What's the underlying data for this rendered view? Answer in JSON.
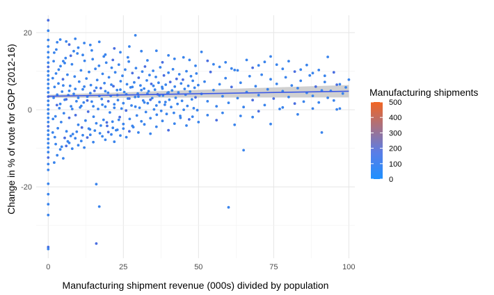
{
  "chart_data": {
    "type": "scatter",
    "title": "",
    "xlabel": "Manufacturing shipment revenue (000s) divided by population",
    "ylabel": "Change in % of vote for GOP (2012-16)",
    "xlim": [
      -4,
      102
    ],
    "ylim": [
      -38.5,
      24.5
    ],
    "x_ticks": [
      0,
      25,
      50,
      75,
      100
    ],
    "x_tick_labels": [
      "0",
      "25",
      "50",
      "75",
      "100"
    ],
    "y_ticks": [
      -20,
      0,
      20
    ],
    "y_tick_labels": [
      "-20",
      "0",
      "20"
    ],
    "grid": true,
    "point_color": "#3a84ec",
    "point_color_dark": "#4a6ee0",
    "trend_line": {
      "color": "#3b59e6",
      "band_color": "#c8c8c8",
      "x": [
        0,
        100
      ],
      "y": [
        3.5,
        4.8
      ],
      "band_halfwidth_start": 0.4,
      "band_halfwidth_end": 1.6
    },
    "legend": {
      "title": "Manufacturing shipments",
      "position": "right",
      "range": [
        0,
        500
      ],
      "labels": [
        "500",
        "400",
        "300",
        "200",
        "100",
        "0"
      ],
      "color_low": "#1e90ff",
      "color_mid": "#5b7de6",
      "color_high": "#f26522"
    },
    "points": [
      [
        0,
        23.2
      ],
      [
        0,
        20.5
      ],
      [
        0,
        18.1
      ],
      [
        0,
        16.4
      ],
      [
        0,
        14.9
      ],
      [
        0,
        13.6
      ],
      [
        0,
        12.2
      ],
      [
        0,
        11.1
      ],
      [
        0,
        10.0
      ],
      [
        0,
        8.9
      ],
      [
        0,
        7.8
      ],
      [
        0,
        6.7
      ],
      [
        0,
        5.6
      ],
      [
        0,
        4.5
      ],
      [
        0,
        3.4
      ],
      [
        0,
        2.3
      ],
      [
        0,
        1.2
      ],
      [
        0,
        0.1
      ],
      [
        0,
        -1.0
      ],
      [
        0,
        -2.1
      ],
      [
        0,
        -3.2
      ],
      [
        0,
        -4.3
      ],
      [
        0,
        -5.4
      ],
      [
        0,
        -6.5
      ],
      [
        0,
        -7.6
      ],
      [
        0,
        -8.7
      ],
      [
        0,
        -9.8
      ],
      [
        0,
        -11.0
      ],
      [
        0,
        -12.4
      ],
      [
        0,
        -14.1
      ],
      [
        0,
        -15.6
      ],
      [
        0,
        -19.2
      ],
      [
        0,
        -21.9
      ],
      [
        0,
        -24.5
      ],
      [
        0,
        -27.3
      ],
      [
        0,
        -35.6
      ],
      [
        0,
        -36.1
      ],
      [
        2,
        14.8
      ],
      [
        3,
        17.5
      ],
      [
        4,
        18.2
      ],
      [
        5,
        12.6
      ],
      [
        6,
        17.7
      ],
      [
        7,
        16.9
      ],
      [
        9,
        18.4
      ],
      [
        10,
        16.1
      ],
      [
        12,
        17.3
      ],
      [
        14,
        16.8
      ],
      [
        17,
        17.6
      ],
      [
        19,
        14.3
      ],
      [
        22,
        15.9
      ],
      [
        24,
        14.9
      ],
      [
        27,
        16.4
      ],
      [
        29,
        19.3
      ],
      [
        31,
        15.2
      ],
      [
        33,
        12.8
      ],
      [
        36,
        15.3
      ],
      [
        38,
        12.3
      ],
      [
        40,
        14.1
      ],
      [
        42,
        13.2
      ],
      [
        45,
        13.6
      ],
      [
        47,
        12.9
      ],
      [
        49,
        11.4
      ],
      [
        51,
        15.0
      ],
      [
        53,
        12.7
      ],
      [
        55,
        11.8
      ],
      [
        57,
        11.1
      ],
      [
        59,
        12.3
      ],
      [
        61,
        10.7
      ],
      [
        63,
        10.2
      ],
      [
        66,
        12.9
      ],
      [
        68,
        10.9
      ],
      [
        70,
        11.5
      ],
      [
        72,
        12.4
      ],
      [
        74,
        13.8
      ],
      [
        76,
        11.7
      ],
      [
        78,
        10.6
      ],
      [
        80,
        12.6
      ],
      [
        82,
        9.9
      ],
      [
        84,
        10.4
      ],
      [
        86,
        11.6
      ],
      [
        88,
        9.5
      ],
      [
        90,
        10.3
      ],
      [
        92,
        8.8
      ],
      [
        93,
        13.7
      ],
      [
        95,
        9.7
      ],
      [
        97,
        6.6
      ],
      [
        100,
        7.8
      ],
      [
        2,
        -13.7
      ],
      [
        3,
        -11.8
      ],
      [
        4,
        -10.3
      ],
      [
        5,
        -12.6
      ],
      [
        6,
        -9.4
      ],
      [
        7,
        -8.6
      ],
      [
        8,
        -10.1
      ],
      [
        9,
        -7.4
      ],
      [
        10,
        -9.2
      ],
      [
        11,
        -8.1
      ],
      [
        12,
        -9.8
      ],
      [
        13,
        -7.2
      ],
      [
        14,
        -6.5
      ],
      [
        15,
        -8.4
      ],
      [
        16,
        -19.3
      ],
      [
        17,
        -25.1
      ],
      [
        18,
        -6.9
      ],
      [
        19,
        -7.8
      ],
      [
        20,
        -5.8
      ],
      [
        21,
        -6.4
      ],
      [
        22,
        -8.3
      ],
      [
        23,
        -5.2
      ],
      [
        24,
        -6.7
      ],
      [
        25,
        -4.9
      ],
      [
        26,
        -7.1
      ],
      [
        27,
        -5.6
      ],
      [
        28,
        -4.2
      ],
      [
        30,
        -5.9
      ],
      [
        32,
        -3.8
      ],
      [
        34,
        -6.2
      ],
      [
        36,
        -4.4
      ],
      [
        38,
        -2.9
      ],
      [
        40,
        -5.3
      ],
      [
        42,
        -3.6
      ],
      [
        44,
        -2.1
      ],
      [
        46,
        -4.1
      ],
      [
        48,
        -1.8
      ],
      [
        50,
        -3.2
      ],
      [
        53,
        -1.4
      ],
      [
        56,
        -2.7
      ],
      [
        58,
        -0.8
      ],
      [
        60,
        -25.3
      ],
      [
        62,
        -3.9
      ],
      [
        64,
        -1.6
      ],
      [
        65,
        -10.5
      ],
      [
        68,
        -1.9
      ],
      [
        70,
        -0.4
      ],
      [
        74,
        -3.7
      ],
      [
        78,
        0.6
      ],
      [
        83,
        -1.2
      ],
      [
        88,
        0.3
      ],
      [
        91,
        -5.9
      ],
      [
        96,
        0.1
      ],
      [
        16,
        -34.7
      ],
      [
        1.5,
        8.2
      ],
      [
        1.6,
        -2.4
      ],
      [
        1.8,
        3.1
      ],
      [
        2.1,
        5.9
      ],
      [
        2.4,
        -1.7
      ],
      [
        2.6,
        9.4
      ],
      [
        2.9,
        1.2
      ],
      [
        3.2,
        -4.8
      ],
      [
        3.4,
        6.8
      ],
      [
        3.7,
        0.4
      ],
      [
        4.1,
        11.3
      ],
      [
        4.3,
        -3.2
      ],
      [
        4.6,
        4.7
      ],
      [
        4.9,
        7.9
      ],
      [
        5.2,
        -0.9
      ],
      [
        5.5,
        2.6
      ],
      [
        5.8,
        13.4
      ],
      [
        6.1,
        -5.6
      ],
      [
        6.4,
        9.1
      ],
      [
        6.7,
        3.8
      ],
      [
        7.0,
        -2.1
      ],
      [
        7.3,
        6.2
      ],
      [
        7.6,
        0.9
      ],
      [
        7.9,
        11.8
      ],
      [
        8.2,
        -6.3
      ],
      [
        8.5,
        4.1
      ],
      [
        8.8,
        8.6
      ],
      [
        9.1,
        -1.4
      ],
      [
        9.4,
        2.2
      ],
      [
        9.7,
        14.6
      ],
      [
        10.0,
        -3.9
      ],
      [
        10.3,
        7.3
      ],
      [
        10.6,
        0.6
      ],
      [
        10.9,
        10.2
      ],
      [
        11.2,
        -4.6
      ],
      [
        11.5,
        5.3
      ],
      [
        11.8,
        1.9
      ],
      [
        12.1,
        12.7
      ],
      [
        12.4,
        -2.8
      ],
      [
        12.7,
        8.1
      ],
      [
        13.0,
        3.4
      ],
      [
        13.3,
        -0.5
      ],
      [
        13.6,
        9.8
      ],
      [
        13.9,
        -5.1
      ],
      [
        14.2,
        6.4
      ],
      [
        14.5,
        2.1
      ],
      [
        14.8,
        13.1
      ],
      [
        15.1,
        -1.8
      ],
      [
        15.4,
        4.9
      ],
      [
        15.7,
        10.6
      ],
      [
        16.0,
        -3.5
      ],
      [
        16.3,
        7.7
      ],
      [
        16.6,
        0.2
      ],
      [
        16.9,
        11.4
      ],
      [
        17.2,
        -6.1
      ],
      [
        17.5,
        5.6
      ],
      [
        17.8,
        2.8
      ],
      [
        18.1,
        9.3
      ],
      [
        18.4,
        -2.6
      ],
      [
        18.7,
        6.9
      ],
      [
        19.0,
        0.8
      ],
      [
        19.3,
        12.2
      ],
      [
        19.6,
        -4.2
      ],
      [
        19.9,
        4.4
      ],
      [
        20.2,
        8.4
      ],
      [
        20.5,
        -0.7
      ],
      [
        20.8,
        3.6
      ],
      [
        21.1,
        10.9
      ],
      [
        21.4,
        -3.1
      ],
      [
        21.7,
        6.1
      ],
      [
        22.0,
        1.4
      ],
      [
        22.3,
        9.7
      ],
      [
        22.6,
        -5.3
      ],
      [
        22.9,
        5.1
      ],
      [
        23.2,
        2.5
      ],
      [
        23.5,
        11.7
      ],
      [
        23.8,
        -1.9
      ],
      [
        24.1,
        7.4
      ],
      [
        24.4,
        0.3
      ],
      [
        24.7,
        8.8
      ],
      [
        25.0,
        -3.7
      ],
      [
        25.3,
        4.6
      ],
      [
        25.6,
        10.4
      ],
      [
        25.9,
        -0.2
      ],
      [
        26.2,
        6.6
      ],
      [
        26.5,
        2.9
      ],
      [
        26.8,
        12.5
      ],
      [
        27.1,
        -2.4
      ],
      [
        27.4,
        5.8
      ],
      [
        27.7,
        1.1
      ],
      [
        28.0,
        9.5
      ],
      [
        28.3,
        -4.5
      ],
      [
        28.6,
        7.1
      ],
      [
        28.9,
        3.3
      ],
      [
        29.2,
        10.8
      ],
      [
        29.5,
        -1.5
      ],
      [
        29.8,
        4.2
      ],
      [
        30.1,
        8.3
      ],
      [
        30.4,
        0.5
      ],
      [
        30.7,
        6.3
      ],
      [
        31.0,
        -3.0
      ],
      [
        31.3,
        9.9
      ],
      [
        31.6,
        2.4
      ],
      [
        31.9,
        5.5
      ],
      [
        32.2,
        11.2
      ],
      [
        32.5,
        -0.6
      ],
      [
        32.8,
        7.6
      ],
      [
        33.1,
        1.7
      ],
      [
        33.4,
        4.8
      ],
      [
        33.7,
        9.0
      ],
      [
        34.0,
        -2.2
      ],
      [
        34.3,
        6.7
      ],
      [
        34.6,
        3.0
      ],
      [
        34.9,
        10.1
      ],
      [
        35.2,
        0.1
      ],
      [
        35.5,
        5.2
      ],
      [
        35.8,
        8.5
      ],
      [
        36.1,
        -1.3
      ],
      [
        36.4,
        4.0
      ],
      [
        36.7,
        7.0
      ],
      [
        37.0,
        2.0
      ],
      [
        37.3,
        11.0
      ],
      [
        37.6,
        -0.3
      ],
      [
        37.9,
        5.9
      ],
      [
        38.2,
        3.7
      ],
      [
        38.5,
        8.9
      ],
      [
        38.8,
        1.3
      ],
      [
        39.1,
        6.5
      ],
      [
        39.4,
        -1.1
      ],
      [
        39.7,
        4.3
      ],
      [
        40.0,
        9.6
      ],
      [
        40.3,
        2.6
      ],
      [
        40.6,
        7.2
      ],
      [
        40.9,
        0.7
      ],
      [
        41.2,
        5.0
      ],
      [
        41.5,
        10.5
      ],
      [
        41.8,
        -0.8
      ],
      [
        42.1,
        6.0
      ],
      [
        42.4,
        3.1
      ],
      [
        42.7,
        8.0
      ],
      [
        43.0,
        1.5
      ],
      [
        43.3,
        4.5
      ],
      [
        43.6,
        9.2
      ],
      [
        43.9,
        -1.6
      ],
      [
        44.2,
        6.8
      ],
      [
        44.5,
        2.3
      ],
      [
        44.8,
        7.8
      ],
      [
        45.1,
        0.0
      ],
      [
        45.4,
        5.4
      ],
      [
        45.7,
        3.9
      ],
      [
        46.0,
        10.0
      ],
      [
        46.3,
        1.0
      ],
      [
        46.6,
        6.2
      ],
      [
        46.9,
        -2.5
      ],
      [
        47.2,
        4.7
      ],
      [
        47.5,
        8.7
      ],
      [
        47.8,
        2.7
      ],
      [
        48.1,
        7.5
      ],
      [
        48.4,
        0.4
      ],
      [
        48.7,
        5.7
      ],
      [
        49.0,
        3.2
      ],
      [
        49.3,
        9.4
      ],
      [
        49.6,
        -0.1
      ],
      [
        49.9,
        6.4
      ],
      [
        51,
        4.1
      ],
      [
        52,
        7.3
      ],
      [
        53,
        2.2
      ],
      [
        54,
        9.8
      ],
      [
        55,
        5.1
      ],
      [
        56,
        0.9
      ],
      [
        57,
        6.6
      ],
      [
        58,
        3.5
      ],
      [
        59,
        8.2
      ],
      [
        60,
        1.8
      ],
      [
        61,
        5.9
      ],
      [
        62,
        10.3
      ],
      [
        63,
        3.0
      ],
      [
        64,
        7.0
      ],
      [
        65,
        0.7
      ],
      [
        66,
        4.6
      ],
      [
        67,
        8.7
      ],
      [
        68,
        2.5
      ],
      [
        69,
        6.1
      ],
      [
        70,
        3.8
      ],
      [
        71,
        9.1
      ],
      [
        72,
        1.2
      ],
      [
        73,
        5.3
      ],
      [
        74,
        7.9
      ],
      [
        75,
        2.9
      ],
      [
        76,
        6.7
      ],
      [
        77,
        0.2
      ],
      [
        78,
        4.8
      ],
      [
        79,
        8.4
      ],
      [
        80,
        3.3
      ],
      [
        81,
        6.3
      ],
      [
        82,
        1.6
      ],
      [
        83,
        5.6
      ],
      [
        84,
        7.5
      ],
      [
        85,
        2.1
      ],
      [
        86,
        4.4
      ],
      [
        87,
        8.9
      ],
      [
        88,
        3.6
      ],
      [
        89,
        6.0
      ],
      [
        90,
        1.9
      ],
      [
        91,
        5.0
      ],
      [
        92,
        7.2
      ],
      [
        93,
        3.1
      ],
      [
        94,
        4.9
      ],
      [
        95,
        2.4
      ],
      [
        96,
        6.5
      ],
      [
        97,
        0.3
      ],
      [
        98,
        4.2
      ],
      [
        99,
        5.8
      ],
      [
        3,
        3.9
      ],
      [
        4,
        1.5
      ],
      [
        5,
        6.3
      ],
      [
        6,
        2.7
      ],
      [
        7,
        4.9
      ],
      [
        8,
        0.2
      ],
      [
        9,
        5.4
      ],
      [
        10,
        3.1
      ],
      [
        11,
        1.0
      ],
      [
        12,
        6.0
      ],
      [
        13,
        2.4
      ],
      [
        14,
        4.3
      ],
      [
        15,
        0.9
      ],
      [
        16,
        5.7
      ],
      [
        17,
        3.6
      ],
      [
        18,
        1.3
      ],
      [
        19,
        4.8
      ],
      [
        20,
        2.2
      ],
      [
        21,
        6.5
      ],
      [
        22,
        0.5
      ],
      [
        23,
        3.8
      ],
      [
        24,
        5.2
      ],
      [
        25,
        1.7
      ],
      [
        26,
        4.0
      ],
      [
        27,
        2.9
      ],
      [
        28,
        5.9
      ],
      [
        29,
        0.8
      ],
      [
        30,
        3.4
      ],
      [
        31,
        5.1
      ],
      [
        32,
        1.9
      ],
      [
        33,
        4.2
      ],
      [
        34,
        2.6
      ],
      [
        35,
        6.2
      ],
      [
        36,
        1.1
      ],
      [
        37,
        3.7
      ],
      [
        38,
        5.5
      ],
      [
        39,
        2.0
      ],
      [
        40,
        4.5
      ],
      [
        5.5,
        -7.3
      ],
      [
        7.5,
        -6.8
      ],
      [
        9.5,
        -5.7
      ],
      [
        11.5,
        -6.6
      ],
      [
        13.5,
        -4.9
      ],
      [
        15.5,
        -5.4
      ],
      [
        17.5,
        -4.1
      ],
      [
        19.5,
        -3.3
      ],
      [
        21.5,
        -4.7
      ],
      [
        23.5,
        -2.6
      ],
      [
        8.5,
        15.2
      ],
      [
        11.5,
        14.2
      ],
      [
        14.5,
        15.4
      ],
      [
        18.5,
        13.8
      ],
      [
        21.5,
        12.9
      ],
      [
        26.5,
        13.6
      ],
      [
        2.5,
        -8.9
      ],
      [
        4.5,
        -9.6
      ],
      [
        6.5,
        -8.2
      ],
      [
        3.5,
        10.4
      ],
      [
        5.5,
        12.1
      ],
      [
        7.5,
        14.0
      ],
      [
        1.5,
        -5.9
      ],
      [
        1.8,
        12.6
      ],
      [
        2.2,
        -7.1
      ],
      [
        2.7,
        15.6
      ]
    ]
  }
}
